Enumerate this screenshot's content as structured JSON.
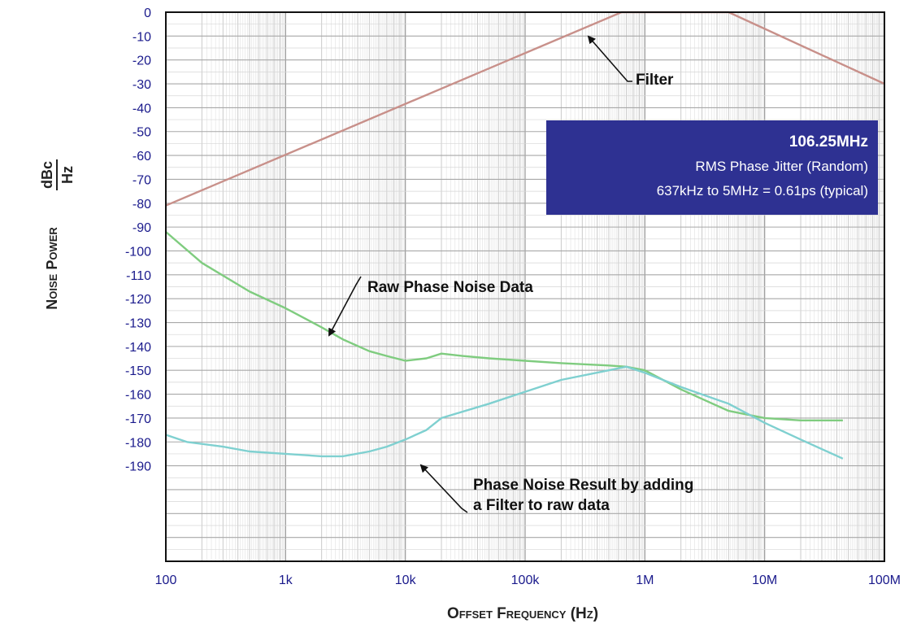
{
  "chart_data": {
    "type": "line",
    "x_scale": "log",
    "xlim": [
      100,
      100000000
    ],
    "ylim": [
      -230,
      0
    ],
    "grid": true,
    "xlabel": "Offset Frequency (Hz)",
    "ylabel": {
      "main": "Noise Power",
      "unit_numerator": "dBc",
      "unit_denominator": "Hz"
    },
    "x_ticks": [
      {
        "value": 100,
        "label": "100"
      },
      {
        "value": 1000,
        "label": "1k"
      },
      {
        "value": 10000,
        "label": "10k"
      },
      {
        "value": 100000,
        "label": "100k"
      },
      {
        "value": 1000000,
        "label": "1M"
      },
      {
        "value": 10000000,
        "label": "10M"
      },
      {
        "value": 100000000,
        "label": "100M"
      }
    ],
    "y_ticks": [
      {
        "value": 0,
        "label": "0"
      },
      {
        "value": -10,
        "label": "-10"
      },
      {
        "value": -20,
        "label": "-20"
      },
      {
        "value": -30,
        "label": "-30"
      },
      {
        "value": -40,
        "label": "-40"
      },
      {
        "value": -50,
        "label": "-50"
      },
      {
        "value": -60,
        "label": "-60"
      },
      {
        "value": -70,
        "label": "-70"
      },
      {
        "value": -80,
        "label": "-80"
      },
      {
        "value": -90,
        "label": "-90"
      },
      {
        "value": -100,
        "label": "-100"
      },
      {
        "value": -110,
        "label": "-110"
      },
      {
        "value": -120,
        "label": "-120"
      },
      {
        "value": -130,
        "label": "-130"
      },
      {
        "value": -140,
        "label": "-140"
      },
      {
        "value": -150,
        "label": "-150"
      },
      {
        "value": -160,
        "label": "-160"
      },
      {
        "value": -170,
        "label": "-170"
      },
      {
        "value": -180,
        "label": "-180"
      },
      {
        "value": -190,
        "label": "-190"
      }
    ],
    "series": [
      {
        "key": "filter",
        "color": "#c8908a",
        "points": [
          [
            100,
            -81
          ],
          [
            637000,
            0
          ],
          [
            5000000,
            0
          ],
          [
            100000000,
            -30
          ]
        ]
      },
      {
        "key": "raw",
        "color": "#7fcc7f",
        "points": [
          [
            100,
            -92
          ],
          [
            200,
            -105
          ],
          [
            500,
            -117
          ],
          [
            1000,
            -124
          ],
          [
            2000,
            -132
          ],
          [
            3000,
            -137
          ],
          [
            5000,
            -142
          ],
          [
            7000,
            -144
          ],
          [
            10000,
            -146
          ],
          [
            15000,
            -145
          ],
          [
            20000,
            -143
          ],
          [
            30000,
            -144
          ],
          [
            50000,
            -145
          ],
          [
            100000,
            -146
          ],
          [
            200000,
            -147
          ],
          [
            500000,
            -148
          ],
          [
            700000,
            -148.5
          ],
          [
            1000000,
            -150
          ],
          [
            2000000,
            -158
          ],
          [
            5000000,
            -167
          ],
          [
            10000000,
            -170
          ],
          [
            20000000,
            -171
          ],
          [
            45000000,
            -171
          ]
        ]
      },
      {
        "key": "result",
        "color": "#7fd0d0",
        "points": [
          [
            100,
            -177
          ],
          [
            150,
            -180
          ],
          [
            300,
            -182
          ],
          [
            500,
            -184
          ],
          [
            1000,
            -185
          ],
          [
            2000,
            -186
          ],
          [
            3000,
            -186
          ],
          [
            5000,
            -184
          ],
          [
            7000,
            -182
          ],
          [
            10000,
            -179
          ],
          [
            15000,
            -175
          ],
          [
            20000,
            -170
          ],
          [
            50000,
            -164
          ],
          [
            100000,
            -159
          ],
          [
            200000,
            -154
          ],
          [
            500000,
            -150
          ],
          [
            700000,
            -148.5
          ],
          [
            1000000,
            -151
          ],
          [
            2000000,
            -157
          ],
          [
            5000000,
            -164
          ],
          [
            10000000,
            -172
          ],
          [
            20000000,
            -179
          ],
          [
            45000000,
            -187
          ]
        ]
      }
    ],
    "annotations": {
      "filter_label": "Filter",
      "raw_label": "Raw Phase Noise Data",
      "result_label_line1": "Phase Noise Result by adding",
      "result_label_line2": "a Filter to raw data"
    },
    "info_box": {
      "title": "106.25MHz",
      "line1": "RMS Phase Jitter (Random)",
      "line2": "637kHz to 5MHz = 0.61ps (typical)",
      "background": "#2e3192"
    }
  }
}
